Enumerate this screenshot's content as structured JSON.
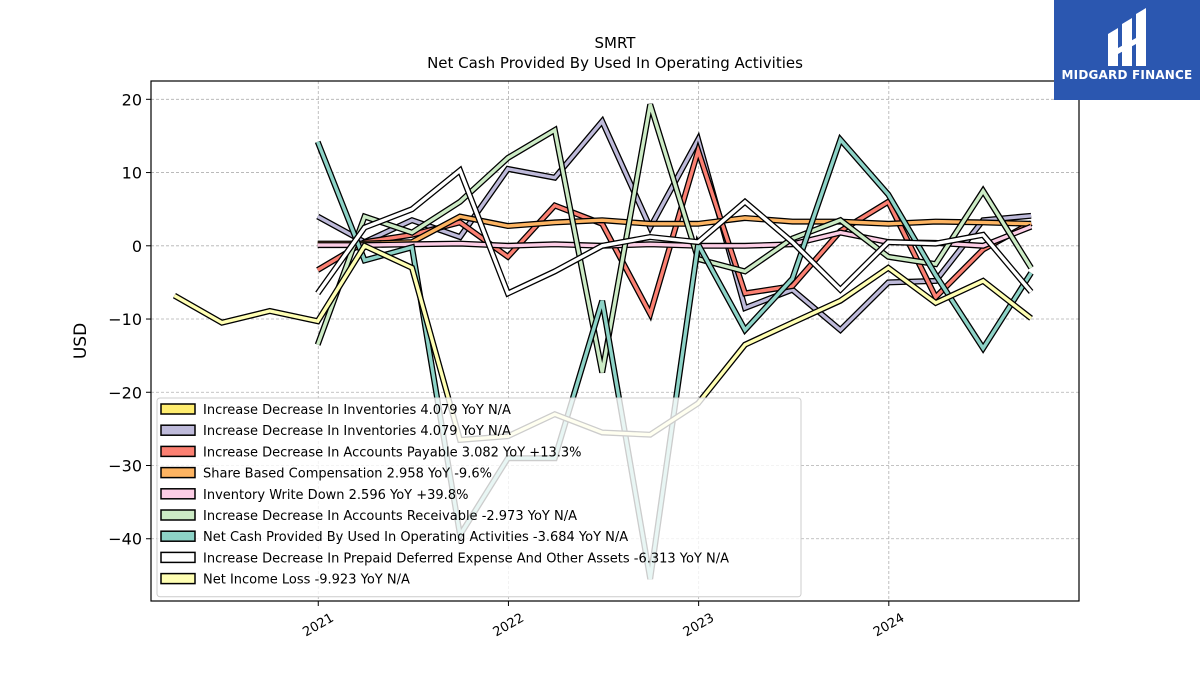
{
  "header": {
    "ticker": "SMRT",
    "title": "Net Cash Provided By Used In Operating Activities"
  },
  "brand": {
    "name": "MIDGARD FINANCE",
    "color": "#2b57b0"
  },
  "chart_data": {
    "type": "line",
    "title": "SMRT",
    "subtitle": "Net Cash Provided By Used In Operating Activities",
    "ylabel": "USD",
    "xlabel": "",
    "ylim": [
      -48.5,
      22.5
    ],
    "xlim": [
      "2020-02-15",
      "2024-12-31"
    ],
    "yticks": [
      20,
      10,
      0,
      -10,
      -20,
      -30,
      -40
    ],
    "ytick_labels": [
      "20",
      "10",
      "0",
      "−10",
      "−20",
      "−30",
      "−40"
    ],
    "xticks": [
      "2021-01-01",
      "2022-01-01",
      "2023-01-01",
      "2024-01-01"
    ],
    "xtick_labels": [
      "2021",
      "2022",
      "2023",
      "2024"
    ],
    "grid": true,
    "legend_position": "lower-left",
    "dates": [
      "2020-03-31",
      "2020-06-30",
      "2020-09-30",
      "2020-12-31",
      "2021-03-31",
      "2021-06-30",
      "2021-09-30",
      "2021-12-31",
      "2022-03-31",
      "2022-06-30",
      "2022-09-30",
      "2022-12-31",
      "2023-03-31",
      "2023-06-30",
      "2023-09-30",
      "2023-12-31",
      "2024-03-31",
      "2024-06-30",
      "2024-09-30"
    ],
    "series": [
      {
        "name": "Increase Decrease In Inventories",
        "legend": "Increase Decrease In Inventories  4.079 YoY N/A",
        "color": "#ffed6f",
        "values": [
          null,
          null,
          null,
          null,
          null,
          null,
          null,
          null,
          null,
          null,
          null,
          null,
          null,
          null,
          null,
          null,
          null,
          null,
          null
        ]
      },
      {
        "name": "Increase Decrease In Inventories",
        "legend": "Increase Decrease In Inventories  4.079 YoY N/A",
        "color": "#bebada",
        "values": [
          null,
          null,
          null,
          4.0,
          0.5,
          3.5,
          1.2,
          10.5,
          9.3,
          17.0,
          2.5,
          14.5,
          -8.5,
          -6.0,
          -11.5,
          -5.0,
          -4.8,
          3.5,
          4.1
        ]
      },
      {
        "name": "Increase Decrease In Accounts Payable",
        "legend": "Increase Decrease In Accounts Payable  3.082 YoY +13.3%",
        "color": "#fb8072",
        "values": [
          null,
          null,
          null,
          -3.3,
          0.5,
          1.5,
          3.2,
          -1.5,
          5.5,
          3.0,
          -9.3,
          13.0,
          -6.5,
          -5.5,
          2.0,
          6.0,
          -7.0,
          -0.5,
          3.1
        ]
      },
      {
        "name": "Share Based Compensation",
        "legend": "Share Based Compensation  2.958 YoY -9.6%",
        "color": "#fdb462",
        "values": [
          null,
          null,
          null,
          0.3,
          0.3,
          0.5,
          4.0,
          2.7,
          3.2,
          3.5,
          3.0,
          3.0,
          3.8,
          3.3,
          3.3,
          3.0,
          3.3,
          3.2,
          3.0
        ]
      },
      {
        "name": "Inventory Write Down",
        "legend": "Inventory Write Down  2.596 YoY +39.8%",
        "color": "#fccde5",
        "values": [
          null,
          null,
          null,
          0.1,
          0.1,
          0.2,
          0.3,
          0.0,
          0.2,
          0.0,
          0.2,
          0.0,
          0.0,
          0.2,
          1.8,
          0.5,
          0.4,
          0.0,
          2.6
        ]
      },
      {
        "name": "Increase Decrease In Accounts Receivable",
        "legend": "Increase Decrease In Accounts Receivable  -2.973 YoY N/A",
        "color": "#ccebc5",
        "values": [
          null,
          null,
          null,
          -13.5,
          4.0,
          1.8,
          6.0,
          12.0,
          15.8,
          -17.3,
          19.3,
          -1.8,
          -3.5,
          1.0,
          3.5,
          -1.5,
          -2.5,
          7.5,
          -3.0
        ]
      },
      {
        "name": "Net Cash Provided By Used In Operating Activities",
        "legend": "Net Cash Provided By Used In Operating Activities  -3.684 YoY N/A",
        "color": "#8dd3c7",
        "values": [
          null,
          null,
          null,
          14.2,
          -2.0,
          -0.2,
          -39.5,
          -29.0,
          -29.0,
          -7.5,
          -45.5,
          0.2,
          -11.5,
          -4.5,
          14.5,
          7.0,
          -4.0,
          -14.0,
          -3.7
        ]
      },
      {
        "name": "Increase Decrease In Prepaid Deferred Expense And Other Assets",
        "legend": "Increase Decrease In Prepaid Deferred Expense And Other Assets  -6.313 YoY N/A",
        "color": "#ffffff",
        "values": [
          null,
          null,
          null,
          -6.5,
          2.5,
          5.0,
          10.3,
          -6.5,
          -3.5,
          0.0,
          1.2,
          0.5,
          6.0,
          0.5,
          -6.0,
          0.5,
          0.3,
          1.5,
          -6.3
        ]
      },
      {
        "name": "Net Income Loss",
        "legend": "Net Income Loss  -9.923 YoY N/A",
        "color": "#ffffb3",
        "values": [
          -6.8,
          -10.5,
          -8.9,
          -10.3,
          0.0,
          -3.0,
          -26.5,
          -26.0,
          -23.0,
          -25.5,
          -25.8,
          -21.5,
          -13.5,
          -10.5,
          -7.5,
          -3.0,
          -7.8,
          -4.8,
          -9.9
        ]
      }
    ]
  }
}
